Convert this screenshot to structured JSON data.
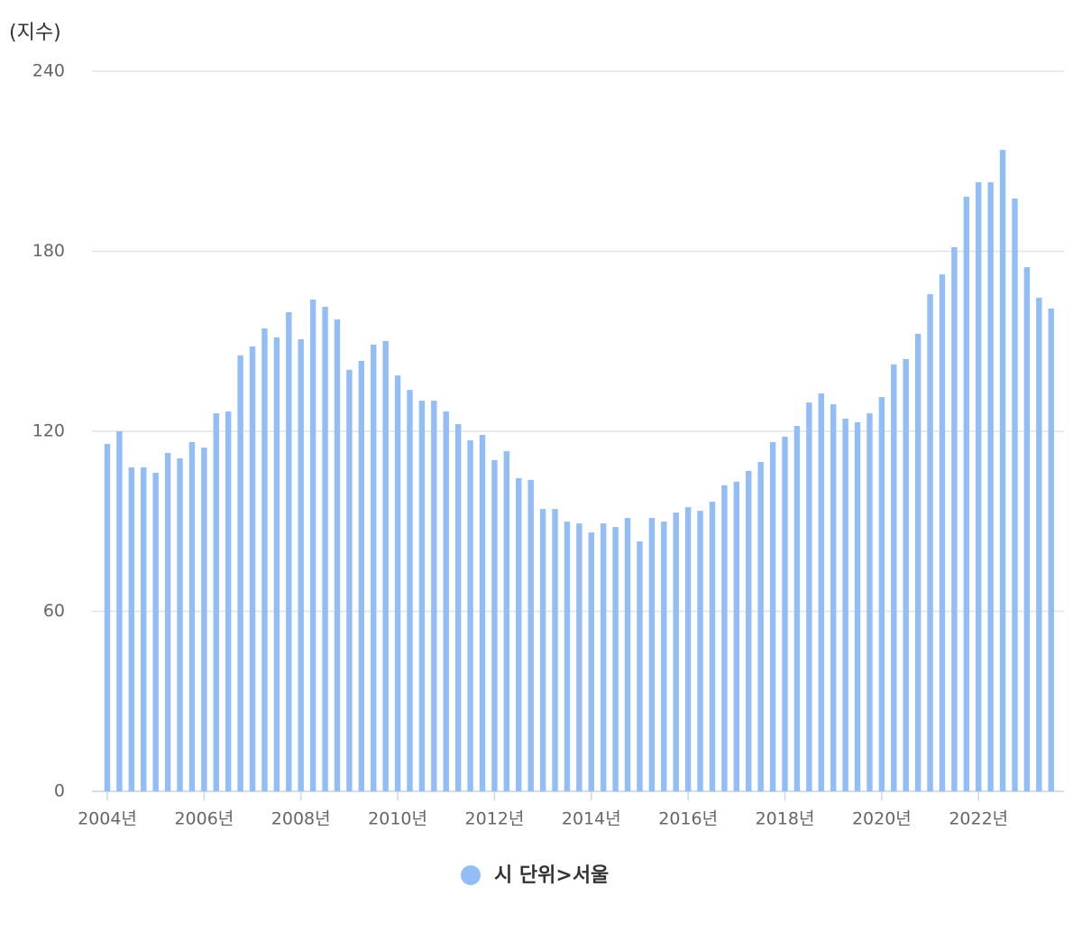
{
  "chart_data": {
    "type": "bar",
    "y_label": "(지수)",
    "categories": [
      "2004년",
      null,
      null,
      null,
      null,
      null,
      null,
      null,
      "2006년",
      null,
      null,
      null,
      null,
      null,
      null,
      null,
      "2008년",
      null,
      null,
      null,
      null,
      null,
      null,
      null,
      "2010년",
      null,
      null,
      null,
      null,
      null,
      null,
      null,
      "2012년",
      null,
      null,
      null,
      null,
      null,
      null,
      null,
      "2014년",
      null,
      null,
      null,
      null,
      null,
      null,
      null,
      "2016년",
      null,
      null,
      null,
      null,
      null,
      null,
      null,
      "2018년",
      null,
      null,
      null,
      null,
      null,
      null,
      null,
      "2020년",
      null,
      null,
      null,
      null,
      null,
      null,
      null,
      "2022년",
      null,
      null,
      null,
      null,
      null,
      null
    ],
    "series": [
      {
        "name": "시 단위>서울",
        "color": "#93bdf6",
        "values": [
          115.8,
          120,
          108,
          108,
          106.2,
          112.8,
          111,
          116.4,
          114.6,
          126,
          126.6,
          145.3,
          148.3,
          154.3,
          151.3,
          159.7,
          150.7,
          163.9,
          161.5,
          157.3,
          140.5,
          143.5,
          148.9,
          150.1,
          138.6,
          133.8,
          130.2,
          130.2,
          126.6,
          122.4,
          117,
          118.8,
          110.4,
          113.4,
          104.4,
          103.8,
          94.1,
          94.1,
          89.9,
          89.3,
          86.3,
          89.3,
          88.1,
          91.1,
          83.3,
          91.1,
          89.9,
          92.9,
          94.7,
          93.5,
          96.5,
          102,
          103.2,
          106.8,
          109.8,
          116.4,
          118.2,
          121.8,
          129.6,
          132.6,
          129,
          124.2,
          123,
          126,
          131.4,
          142.3,
          144.1,
          152.5,
          165.7,
          172.3,
          181.4,
          198.2,
          203,
          203,
          213.8,
          197.6,
          174.7,
          164.5,
          160.9
        ]
      }
    ],
    "ylim": [
      0,
      240
    ],
    "yticks": [
      0,
      60,
      120,
      180,
      240
    ],
    "grid": true,
    "legend": "bottom"
  }
}
